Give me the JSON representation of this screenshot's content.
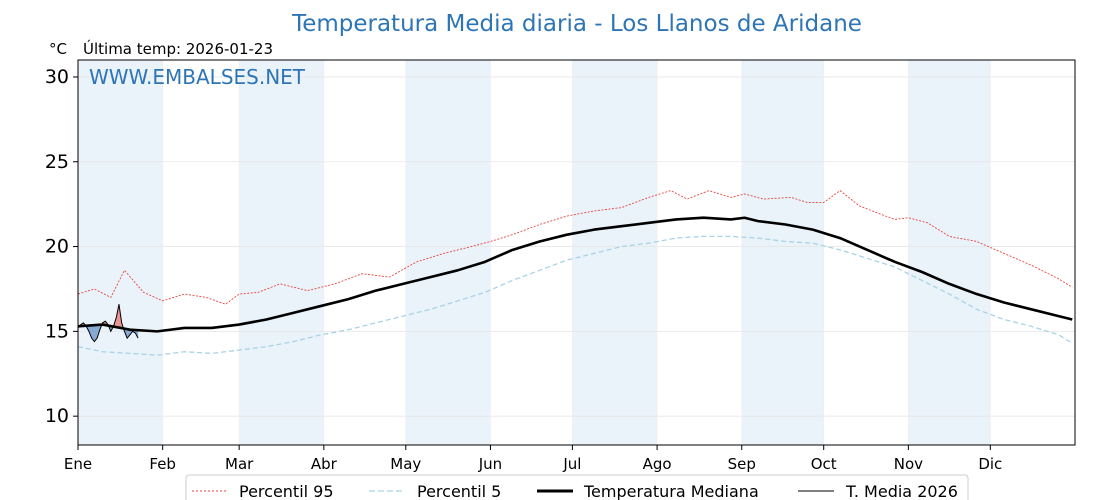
{
  "chart_data": {
    "type": "line",
    "title": "Temperatura Media diaria - Los Llanos de Aridane",
    "unit_label": "°C",
    "subtitle": "Última temp: 2026-01-23",
    "watermark": "WWW.EMBALSES.NET",
    "ylim": [
      8.3,
      31
    ],
    "yticks": [
      10,
      15,
      20,
      25,
      30
    ],
    "x_months": [
      "Ene",
      "Feb",
      "Mar",
      "Abr",
      "May",
      "Jun",
      "Jul",
      "Ago",
      "Sep",
      "Oct",
      "Nov",
      "Dic"
    ],
    "grid": true,
    "legend_position": "bottom-center",
    "colors": {
      "title": "#2e75b6",
      "p95": "#e8453c",
      "p5": "#a8d3e6",
      "median": "#000000",
      "current": "#000000",
      "band_blue": "#4f81bd",
      "band_red": "#e8453c",
      "month_shade": "#eaf2fa"
    },
    "series": [
      {
        "name": "Percentil 95",
        "style": "dotted",
        "x": [
          1,
          7,
          13,
          18,
          25,
          32,
          40,
          48,
          55,
          60,
          67,
          75,
          85,
          95,
          105,
          115,
          125,
          135,
          145,
          152,
          160,
          170,
          180,
          190,
          200,
          210,
          218,
          224,
          232,
          240,
          245,
          252,
          262,
          268,
          274,
          280,
          287,
          295,
          300,
          305,
          312,
          320,
          330,
          340,
          350,
          360,
          365
        ],
        "y": [
          17.2,
          17.5,
          17.0,
          18.6,
          17.3,
          16.8,
          17.2,
          17.0,
          16.6,
          17.2,
          17.3,
          17.8,
          17.4,
          17.8,
          18.4,
          18.2,
          19.1,
          19.6,
          20.0,
          20.3,
          20.7,
          21.3,
          21.8,
          22.1,
          22.3,
          22.9,
          23.3,
          22.8,
          23.3,
          22.9,
          23.1,
          22.8,
          22.9,
          22.6,
          22.6,
          23.3,
          22.4,
          21.9,
          21.6,
          21.7,
          21.4,
          20.6,
          20.3,
          19.6,
          18.9,
          18.1,
          17.6
        ]
      },
      {
        "name": "Percentil 5",
        "style": "dashed",
        "x": [
          1,
          10,
          20,
          30,
          40,
          50,
          60,
          70,
          80,
          90,
          100,
          110,
          120,
          130,
          140,
          150,
          160,
          170,
          180,
          190,
          200,
          210,
          220,
          230,
          240,
          250,
          260,
          270,
          280,
          290,
          300,
          310,
          320,
          330,
          340,
          350,
          360,
          365
        ],
        "y": [
          14.1,
          13.8,
          13.7,
          13.6,
          13.8,
          13.7,
          13.9,
          14.1,
          14.4,
          14.8,
          15.1,
          15.5,
          15.9,
          16.3,
          16.8,
          17.3,
          18.0,
          18.6,
          19.2,
          19.6,
          20.0,
          20.2,
          20.5,
          20.6,
          20.6,
          20.5,
          20.3,
          20.2,
          19.8,
          19.3,
          18.8,
          18.0,
          17.2,
          16.3,
          15.7,
          15.3,
          14.8,
          14.3
        ]
      },
      {
        "name": "Temperatura Mediana",
        "style": "solid-bold",
        "x": [
          1,
          10,
          20,
          30,
          40,
          50,
          60,
          70,
          80,
          90,
          100,
          110,
          120,
          130,
          140,
          150,
          160,
          170,
          180,
          190,
          200,
          210,
          220,
          230,
          240,
          245,
          250,
          260,
          270,
          280,
          290,
          300,
          310,
          320,
          330,
          340,
          350,
          360,
          365
        ],
        "y": [
          15.3,
          15.4,
          15.1,
          15.0,
          15.2,
          15.2,
          15.4,
          15.7,
          16.1,
          16.5,
          16.9,
          17.4,
          17.8,
          18.2,
          18.6,
          19.1,
          19.8,
          20.3,
          20.7,
          21.0,
          21.2,
          21.4,
          21.6,
          21.7,
          21.6,
          21.7,
          21.5,
          21.3,
          21.0,
          20.5,
          19.8,
          19.1,
          18.5,
          17.8,
          17.2,
          16.7,
          16.3,
          15.9,
          15.7
        ]
      },
      {
        "name": "T. Media 2026",
        "style": "solid-thin",
        "x": [
          1,
          2,
          3,
          4,
          5,
          6,
          7,
          8,
          9,
          10,
          11,
          12,
          13,
          14,
          15,
          16,
          17,
          18,
          19,
          20,
          21,
          22,
          23
        ],
        "y": [
          15.2,
          15.4,
          15.5,
          15.3,
          15.0,
          14.6,
          14.4,
          14.6,
          15.1,
          15.5,
          15.6,
          15.4,
          15.0,
          15.3,
          15.8,
          16.6,
          15.5,
          15.0,
          14.6,
          14.8,
          15.0,
          14.9,
          14.6
        ]
      }
    ]
  },
  "legend": {
    "items": [
      {
        "label": "Percentil 95"
      },
      {
        "label": "Percentil 5"
      },
      {
        "label": "Temperatura Mediana"
      },
      {
        "label": "T. Media 2026"
      }
    ]
  }
}
